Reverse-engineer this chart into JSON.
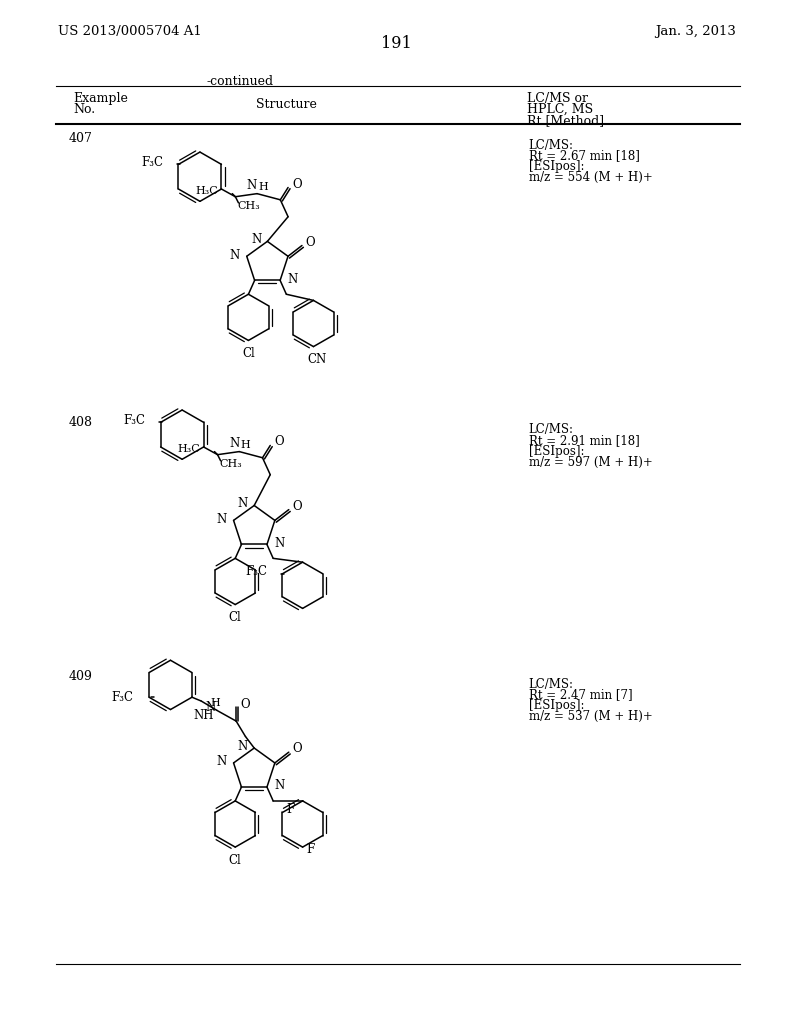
{
  "page_header_left": "US 2013/0005704 A1",
  "page_header_right": "Jan. 3, 2013",
  "page_number": "191",
  "table_continued": "-continued",
  "col_headers": {
    "col1_line1": "Example",
    "col1_line2": "No.",
    "col2": "Structure",
    "col3_line1": "LC/MS or",
    "col3_line2": "HPLC, MS",
    "col3_line3": "Rt [Method]"
  },
  "examples": [
    {
      "no": "407",
      "data_lines": [
        "LC/MS:",
        "Rt = 2.67 min [18]",
        "[ESIpos]:",
        "m/z = 554 (M + H)+"
      ]
    },
    {
      "no": "408",
      "data_lines": [
        "LC/MS:",
        "Rt = 2.91 min [18]",
        "[ESIpos]:",
        "m/z = 597 (M + H)+"
      ]
    },
    {
      "no": "409",
      "data_lines": [
        "LC/MS:",
        "Rt = 2.47 min [7]",
        "[ESIpos]:",
        "m/z = 537 (M + H)+"
      ]
    }
  ],
  "bg_color": "#ffffff",
  "text_color": "#000000"
}
